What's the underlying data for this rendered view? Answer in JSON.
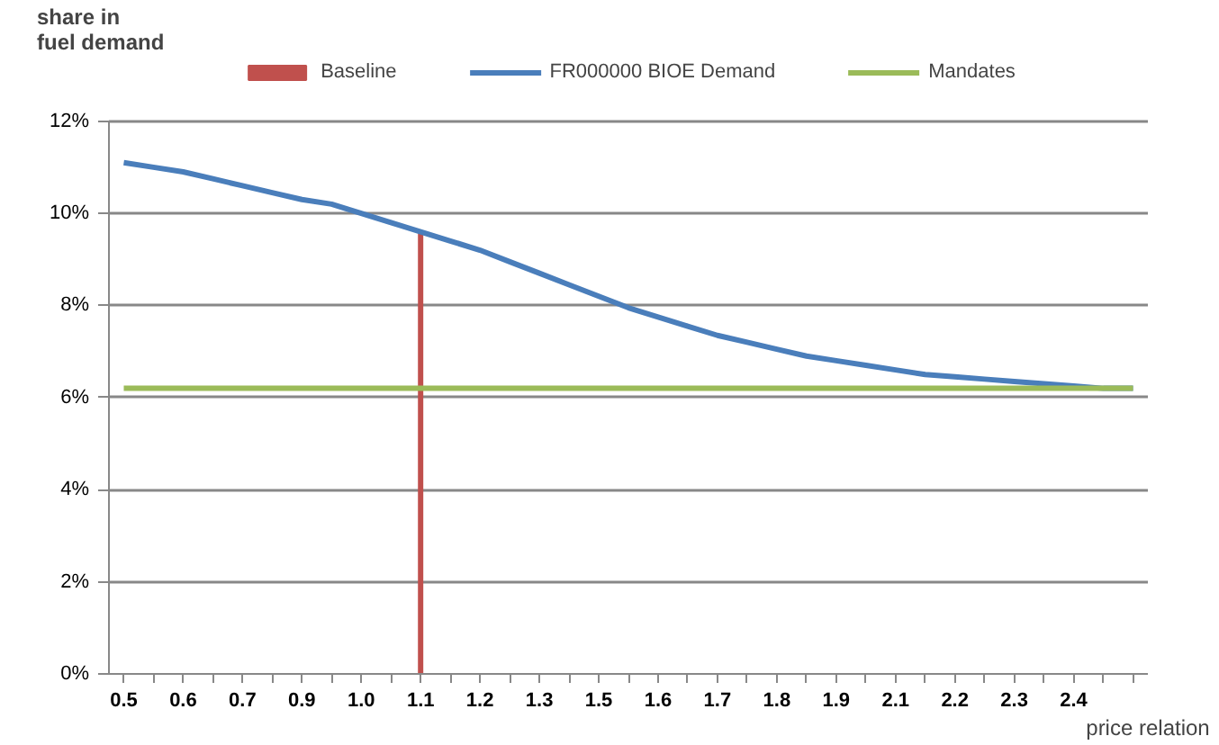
{
  "chart_data": {
    "type": "line",
    "xlabel": "price relation",
    "ylabel": "share in fuel demand",
    "categories": [
      "0.5",
      null,
      "0.6",
      null,
      "0.7",
      null,
      "0.9",
      null,
      "1.0",
      null,
      "1.1",
      null,
      "1.2",
      null,
      "1.3",
      null,
      "1.5",
      null,
      "1.6",
      null,
      "1.7",
      null,
      "1.8",
      null,
      "1.9",
      null,
      "2.1",
      null,
      "2.2",
      null,
      "2.3",
      null,
      "2.4",
      null,
      null
    ],
    "series": [
      {
        "name": "Baseline",
        "type": "bar",
        "color": "#c0504d",
        "values": [
          null,
          null,
          null,
          null,
          null,
          null,
          null,
          null,
          null,
          null,
          9.6,
          null,
          null,
          null,
          null,
          null,
          null,
          null,
          null,
          null,
          null,
          null,
          null,
          null,
          null,
          null,
          null,
          null,
          null,
          null,
          null,
          null,
          null,
          null,
          null
        ]
      },
      {
        "name": "FR000000 BIOE Demand",
        "color": "#4a7ebb",
        "values": [
          11.1,
          11.0,
          10.9,
          10.75,
          10.6,
          10.45,
          10.3,
          10.2,
          10.0,
          9.8,
          9.6,
          9.4,
          9.2,
          8.95,
          8.7,
          8.45,
          8.2,
          7.95,
          7.75,
          7.55,
          7.35,
          7.2,
          7.05,
          6.9,
          6.8,
          6.7,
          6.6,
          6.5,
          6.45,
          6.4,
          6.35,
          6.3,
          6.25,
          6.2,
          6.2
        ]
      },
      {
        "name": "Mandates",
        "color": "#9bbb59",
        "values": [
          6.2,
          6.2,
          6.2,
          6.2,
          6.2,
          6.2,
          6.2,
          6.2,
          6.2,
          6.2,
          6.2,
          6.2,
          6.2,
          6.2,
          6.2,
          6.2,
          6.2,
          6.2,
          6.2,
          6.2,
          6.2,
          6.2,
          6.2,
          6.2,
          6.2,
          6.2,
          6.2,
          6.2,
          6.2,
          6.2,
          6.2,
          6.2,
          6.2,
          6.2,
          6.2
        ]
      }
    ],
    "ylim": [
      0,
      12
    ],
    "yticks": [
      {
        "value": 0,
        "label": "0%"
      },
      {
        "value": 2,
        "label": "2%"
      },
      {
        "value": 4,
        "label": "4%"
      },
      {
        "value": 6,
        "label": "6%"
      },
      {
        "value": 8,
        "label": "8%"
      },
      {
        "value": 10,
        "label": "10%"
      },
      {
        "value": 12,
        "label": "12%"
      }
    ],
    "grid": "y",
    "legend": "top"
  }
}
